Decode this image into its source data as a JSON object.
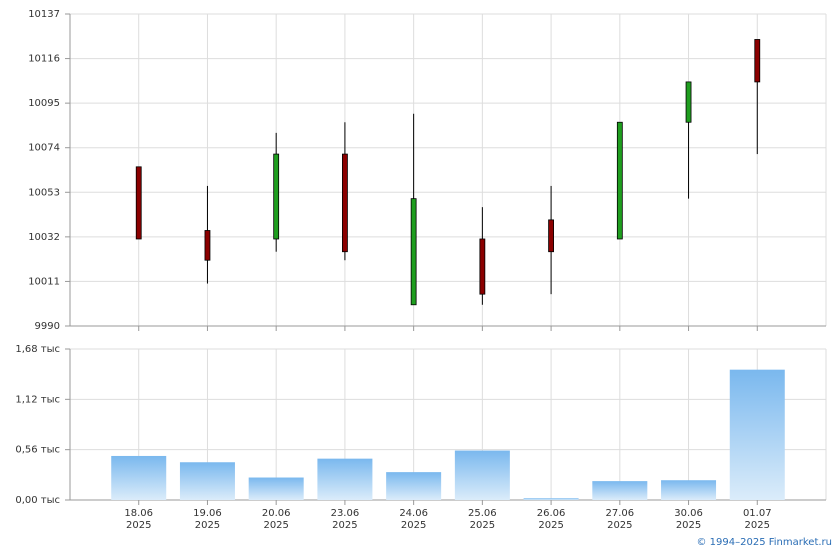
{
  "chart_data": [
    {
      "type": "candlestick",
      "open": [
        10065,
        10035,
        10031,
        10071,
        10000,
        10031,
        10040,
        10031,
        10086,
        10125
      ],
      "high": [
        10065,
        10056,
        10081,
        10086,
        10090,
        10046,
        10056,
        10086,
        10105,
        10125
      ],
      "low": [
        10031,
        10010,
        10025,
        10021,
        10000,
        10000,
        10005,
        10031,
        10050,
        10071
      ],
      "close": [
        10031,
        10021,
        10071,
        10025,
        10050,
        10005,
        10025,
        10086,
        10105,
        10105
      ],
      "up_color": "#1f9e1f",
      "down_color": "#8b0000",
      "ylim": [
        9990,
        10137
      ],
      "yticks": [
        9990,
        10011,
        10032,
        10053,
        10074,
        10095,
        10116,
        10137
      ],
      "grid": true
    },
    {
      "type": "bar",
      "categories": [
        [
          "18.06",
          "2025"
        ],
        [
          "19.06",
          "2025"
        ],
        [
          "20.06",
          "2025"
        ],
        [
          "23.06",
          "2025"
        ],
        [
          "24.06",
          "2025"
        ],
        [
          "25.06",
          "2025"
        ],
        [
          "26.06",
          "2025"
        ],
        [
          "27.06",
          "2025"
        ],
        [
          "30.06",
          "2025"
        ],
        [
          "01.07",
          "2025"
        ]
      ],
      "values": [
        0.49,
        0.42,
        0.25,
        0.46,
        0.31,
        0.55,
        0.02,
        0.21,
        0.22,
        1.45
      ],
      "color": "url(#volgrad)",
      "ylim": [
        0,
        1.68
      ],
      "yticks": [
        {
          "value": 0,
          "label": "0,00 тыс"
        },
        {
          "value": 0.56,
          "label": "0,56 тыс"
        },
        {
          "value": 1.12,
          "label": "1,12 тыс"
        },
        {
          "value": 1.68,
          "label": "1,68 тыс"
        }
      ],
      "grid": true
    }
  ],
  "footer": "© 1994–2025 Finmarket.ru"
}
